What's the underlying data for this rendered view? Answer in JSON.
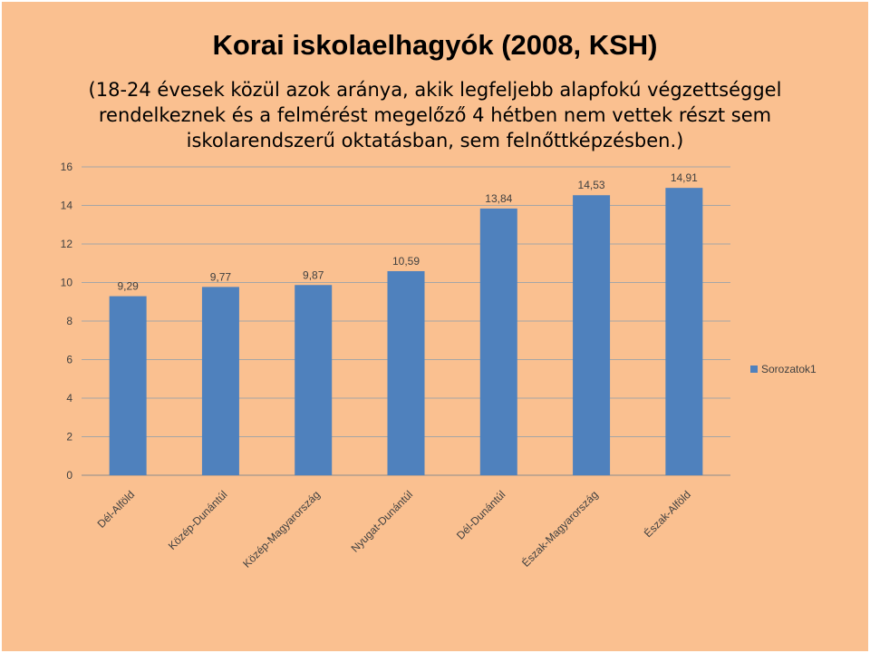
{
  "slide": {
    "title": "Korai iskolaelhagyók (2008, KSH)",
    "subtitle": "(18-24 évesek közül azok aránya, akik legfeljebb alapfokú végzettséggel rendelkeznek és a felmérést megelőző 4 hétben nem vettek részt sem iskolarendszerű oktatásban, sem felnőttképzésben.)"
  },
  "chart_data": {
    "type": "bar",
    "categories": [
      "Dél-Alföld",
      "Közép-Dunántúl",
      "Közép-Magyarország",
      "Nyugat-Dunántúl",
      "Dél-Dunántúl",
      "Észak-Magyarország",
      "Észak-Alföld"
    ],
    "series": [
      {
        "name": "Sorozatok1",
        "values": [
          9.29,
          9.77,
          9.87,
          10.59,
          13.84,
          14.53,
          14.91
        ],
        "labels": [
          "9,29",
          "9,77",
          "9,87",
          "10,59",
          "13,84",
          "14,53",
          "14,91"
        ],
        "color": "#4f81bd"
      }
    ],
    "yticks": [
      0,
      2,
      4,
      6,
      8,
      10,
      12,
      14,
      16
    ],
    "ylim": [
      0,
      16
    ],
    "grid": true,
    "legend_position": "right"
  }
}
